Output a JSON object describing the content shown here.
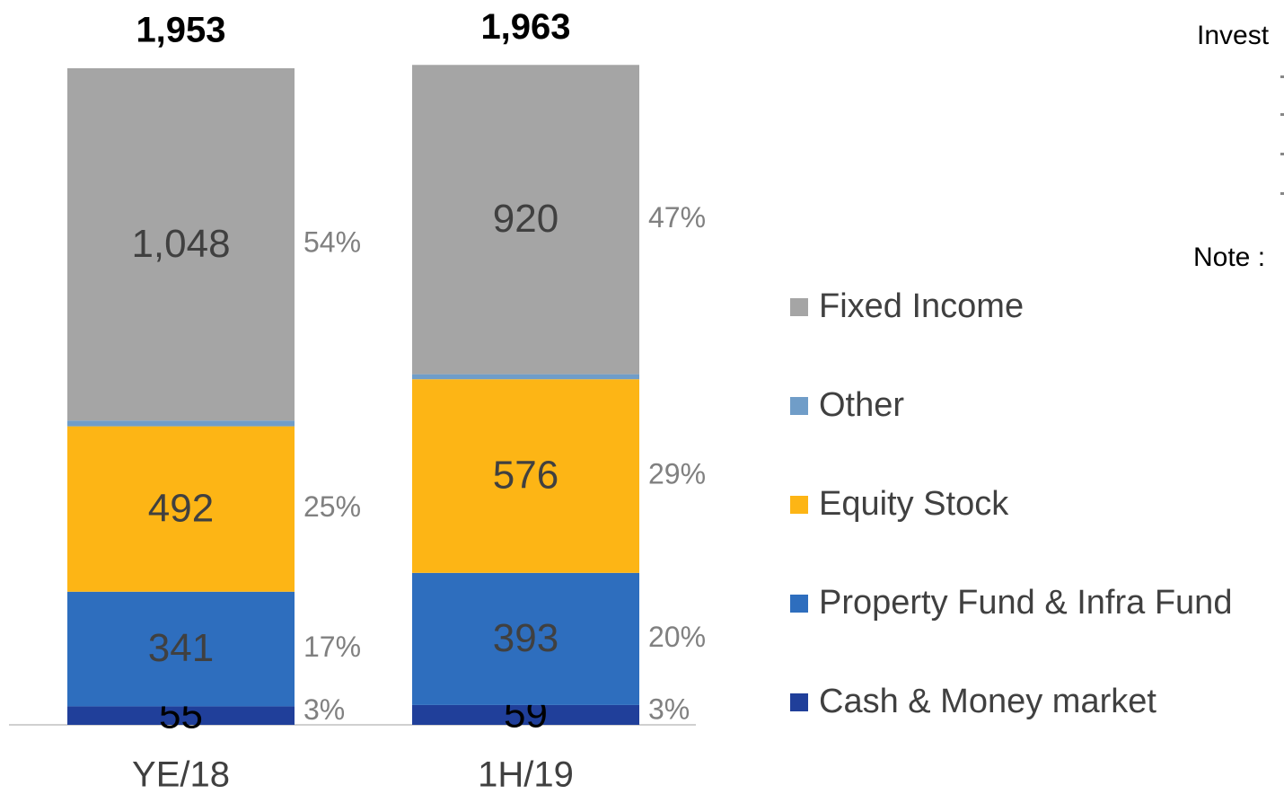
{
  "chart_data": {
    "type": "stacked_bar",
    "categories": [
      "YE/18",
      "1H/19"
    ],
    "totals": [
      1953,
      1963
    ],
    "total_labels": [
      "1,953",
      "1,963"
    ],
    "series": [
      {
        "name": "Cash & Money market",
        "color": "#203f9a",
        "values": [
          55,
          59
        ],
        "share_labels": [
          "3%",
          "3%"
        ]
      },
      {
        "name": "Property Fund & Infra Fund",
        "color": "#2e6ebe",
        "values": [
          341,
          393
        ],
        "share_labels": [
          "17%",
          "20%"
        ]
      },
      {
        "name": "Equity Stock",
        "color": "#fdb515",
        "values": [
          492,
          576
        ],
        "share_labels": [
          "25%",
          "29%"
        ]
      },
      {
        "name": "Other",
        "color": "#709dc8",
        "values": [
          17,
          15
        ],
        "share_labels": [
          null,
          null
        ]
      },
      {
        "name": "Fixed Income",
        "color": "#a5a5a5",
        "values": [
          1048,
          920
        ],
        "value_labels": [
          "1,048",
          "920"
        ],
        "share_labels": [
          "54%",
          "47%"
        ]
      }
    ],
    "annotations": [
      "Invest",
      "Note :"
    ]
  }
}
